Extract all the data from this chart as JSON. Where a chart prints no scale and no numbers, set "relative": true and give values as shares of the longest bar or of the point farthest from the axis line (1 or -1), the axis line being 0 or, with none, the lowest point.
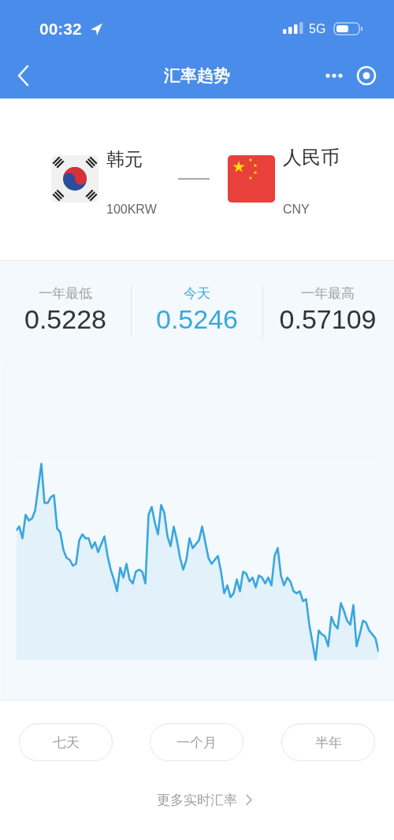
{
  "chart_data": [
    {
      "type": "other",
      "title": "汇率趋势",
      "annotations": [
        "00:32",
        "5G",
        "韩元",
        "100KRW",
        "人民币",
        "CNY",
        "一年最低",
        "0.5228",
        "今天",
        "0.5246",
        "一年最高",
        "0.57109"
      ]
    },
    {
      "type": "area",
      "relative": true,
      "color": "#3aa6de",
      "categories": [
        null,
        null,
        null,
        null,
        null,
        null,
        null,
        null,
        null,
        null,
        null,
        null,
        null,
        null,
        null,
        null,
        null,
        null,
        null,
        null,
        null,
        null,
        null,
        null,
        null,
        null,
        null,
        null,
        null,
        null,
        null,
        null,
        null,
        null,
        null,
        null,
        null,
        null,
        null,
        null,
        null,
        null,
        null,
        null,
        null,
        null,
        null,
        null,
        null,
        null,
        null,
        null,
        null,
        null,
        null,
        null,
        null,
        null,
        null,
        null,
        null,
        null,
        null,
        null,
        null,
        null,
        null,
        null,
        null,
        null,
        null,
        null,
        null,
        null,
        null,
        null,
        null,
        null,
        null,
        null,
        null,
        null,
        null,
        null,
        null,
        null,
        null,
        null,
        null,
        null,
        null,
        null,
        null,
        null,
        null,
        null,
        null,
        null,
        null,
        null,
        null,
        null,
        null,
        null,
        null,
        null,
        null,
        null,
        null,
        null,
        null,
        null,
        null,
        null,
        null,
        null
      ],
      "values": [
        0.66,
        0.68,
        0.62,
        0.74,
        0.71,
        0.72,
        0.76,
        0.88,
        1,
        0.8,
        0.8,
        0.83,
        0.84,
        0.67,
        0.65,
        0.56,
        0.52,
        0.51,
        0.48,
        0.49,
        0.61,
        0.64,
        0.62,
        0.62,
        0.57,
        0.6,
        0.55,
        0.59,
        0.63,
        0.53,
        0.46,
        0.41,
        0.35,
        0.47,
        0.42,
        0.49,
        0.41,
        0.39,
        0.45,
        0.46,
        0.45,
        0.39,
        0.74,
        0.78,
        0.7,
        0.64,
        0.79,
        0.75,
        0.63,
        0.58,
        0.68,
        0.61,
        0.52,
        0.46,
        0.51,
        0.62,
        0.57,
        0.59,
        0.61,
        0.68,
        0.6,
        0.52,
        0.49,
        0.51,
        0.53,
        0.45,
        0.34,
        0.38,
        0.32,
        0.34,
        0.41,
        0.35,
        0.45,
        0.44,
        0.4,
        0.42,
        0.37,
        0.43,
        0.42,
        0.39,
        0.42,
        0.38,
        0.53,
        0.57,
        0.43,
        0.38,
        0.42,
        0.4,
        0.35,
        0.34,
        0.35,
        0.3,
        0.31,
        0.18,
        0.09,
        0,
        0.15,
        0.13,
        0.12,
        0.07,
        0.22,
        0.18,
        0.16,
        0.29,
        0.25,
        0.2,
        0.18,
        0.28,
        0.07,
        0.13,
        0.2,
        0.19,
        0.15,
        0.13,
        0.11,
        0.04
      ]
    },
    {
      "type": "other",
      "annotations": [
        "七天",
        "一个月",
        "半年",
        "更多实时汇率"
      ]
    }
  ]
}
